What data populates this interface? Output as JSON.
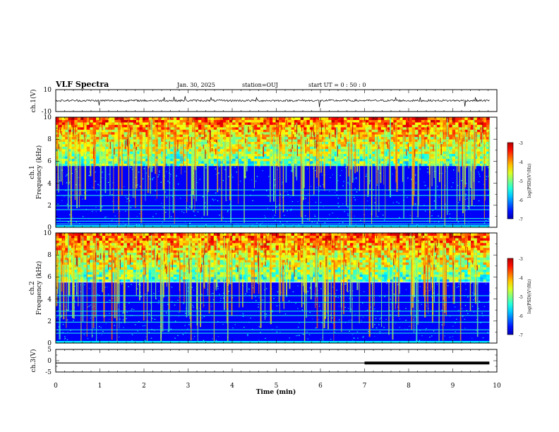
{
  "header": {
    "title": "VLF Spectra",
    "date": "Jan. 30, 2025",
    "station": "station=OUJ",
    "start": "start  UT =   0 : 50 : 0"
  },
  "chart_data": {
    "type": "heatmap",
    "x": {
      "label": "Time (min)",
      "range": [
        0,
        10
      ],
      "ticks": [
        "0",
        "1",
        "2",
        "3",
        "4",
        "5",
        "6",
        "7",
        "8",
        "9",
        "10"
      ],
      "data_end": 9.83
    },
    "panels": [
      {
        "id": "ch1-waveform",
        "type": "line",
        "ylabel": "ch.1(V)",
        "yrange": [
          -10,
          10
        ],
        "yticks": [
          "10",
          "-10"
        ],
        "baseline": 0,
        "noise_amplitude": 0.9,
        "spikes": [
          [
            0.98,
            -4.5
          ],
          [
            2.45,
            3
          ],
          [
            2.68,
            3.5
          ],
          [
            2.93,
            4
          ],
          [
            3.52,
            3
          ],
          [
            4.55,
            3
          ],
          [
            5.97,
            -6
          ],
          [
            7.7,
            3
          ],
          [
            8.26,
            3
          ],
          [
            9.27,
            -5.5
          ],
          [
            9.52,
            3
          ]
        ]
      },
      {
        "id": "ch1-spectrogram",
        "type": "heatmap",
        "ylabel": "Frequency (kHz)",
        "ylabel2": "ch.1",
        "yrange": [
          0,
          10
        ],
        "yticks": [
          "0",
          "2",
          "4",
          "6",
          "8",
          "10"
        ],
        "colorbar": {
          "label": "log(PSD)(V²/Hz)",
          "range": [
            -7,
            -3
          ],
          "ticks": [
            "-3",
            "-4",
            "-5",
            "-6",
            "-7"
          ]
        },
        "noise_floor_kHz": 5.8,
        "emission_band_kHz": [
          6,
          10
        ],
        "lines_kHz": [
          0.3,
          0.55,
          0.8,
          1.6,
          1.95,
          2.9,
          3.4
        ]
      },
      {
        "id": "ch2-spectrogram",
        "type": "heatmap",
        "ylabel": "Frequency (kHz)",
        "ylabel2": "ch.2",
        "yrange": [
          0,
          10
        ],
        "yticks": [
          "0",
          "2",
          "4",
          "6",
          "8",
          "10"
        ],
        "colorbar": {
          "label": "log(PSD)(V²/Hz)",
          "range": [
            -7,
            -3
          ],
          "ticks": [
            "-3",
            "-4",
            "-5",
            "-6",
            "-7"
          ]
        },
        "noise_floor_kHz": 5.5,
        "emission_band_kHz": [
          6,
          10
        ],
        "lines_kHz": [
          0.9,
          1.2,
          1.9,
          2.5,
          2.9,
          3.7,
          4.3
        ]
      },
      {
        "id": "ch3-waveform",
        "type": "line",
        "ylabel": "ch.3(V)",
        "yrange": [
          -5,
          5
        ],
        "yticks": [
          "5",
          "0",
          "-5"
        ],
        "baseline": -1,
        "thick_from_min": 7.0
      }
    ]
  }
}
